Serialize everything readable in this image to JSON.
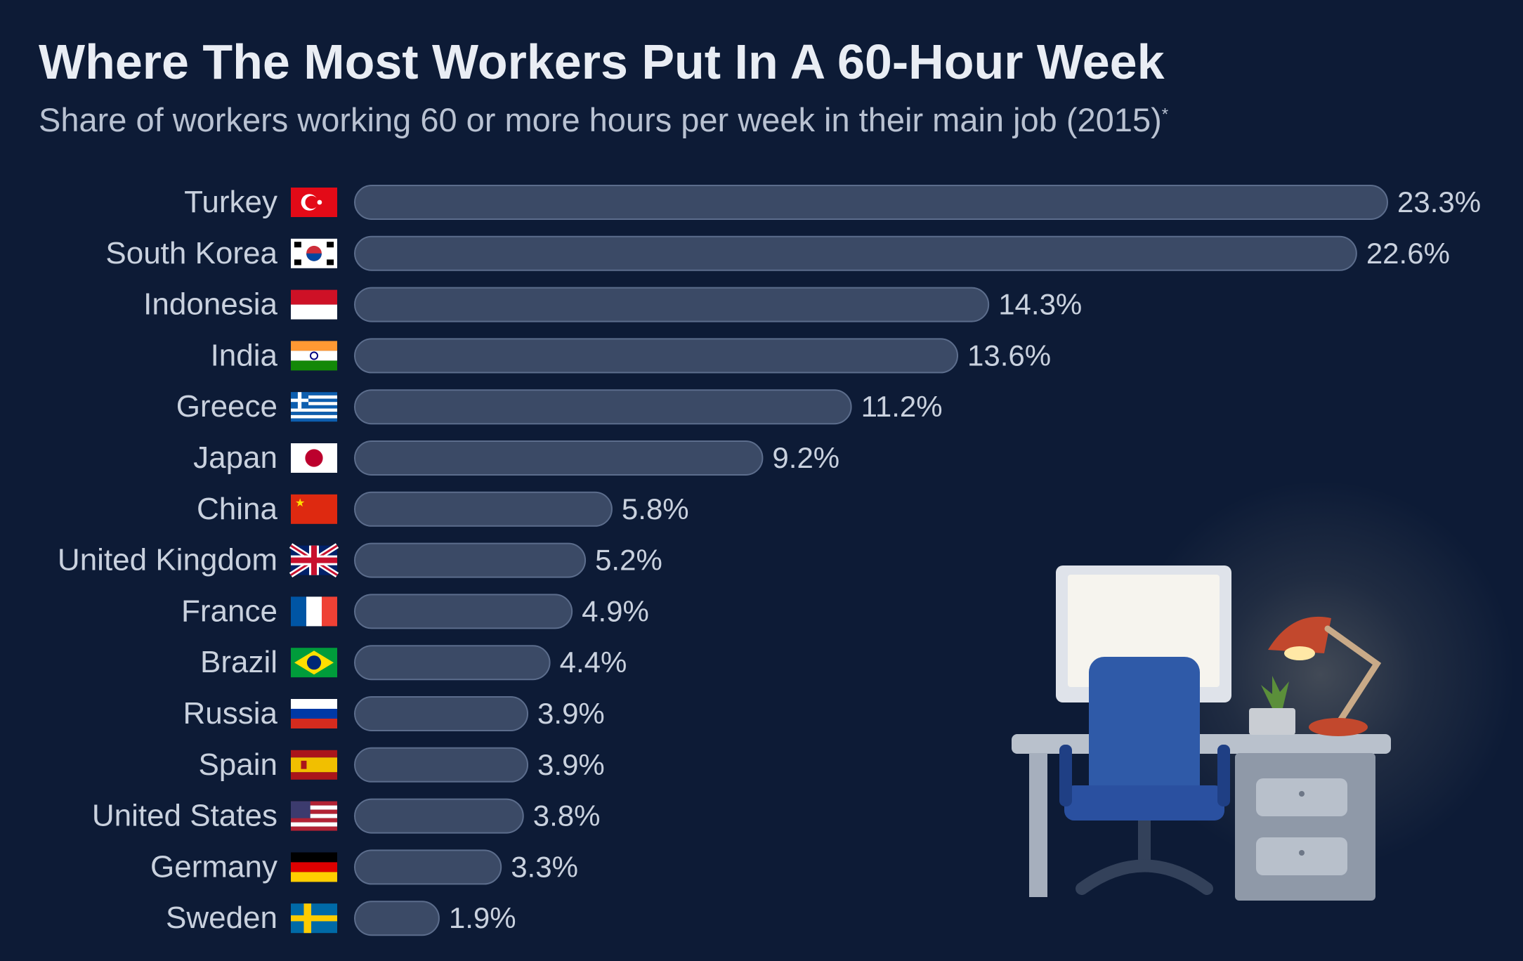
{
  "title": "Where The Most Workers Put In A 60-Hour Week",
  "subtitle": "Share of workers working 60 or more hours per week in their main job (2015)",
  "subtitle_mark": "*",
  "colors": {
    "background": "#0d1b36",
    "bar_fill": "#3b4a66",
    "bar_stroke": "#5c6d8c",
    "label": "#c9d1de",
    "value": "#c9d1de"
  },
  "chart_data": {
    "type": "bar",
    "orientation": "horizontal",
    "title": "Where The Most Workers Put In A 60-Hour Week",
    "subtitle": "Share of workers working 60 or more hours per week in their main job (2015)",
    "xlabel": "",
    "ylabel": "",
    "unit": "%",
    "xlim": [
      0,
      23.3
    ],
    "grid": false,
    "legend": "none",
    "categories": [
      "Turkey",
      "South Korea",
      "Indonesia",
      "India",
      "Greece",
      "Japan",
      "China",
      "United Kingdom",
      "France",
      "Brazil",
      "Russia",
      "Spain",
      "United States",
      "Germany",
      "Sweden"
    ],
    "values": [
      23.3,
      22.6,
      14.3,
      13.6,
      11.2,
      9.2,
      5.8,
      5.2,
      4.9,
      4.4,
      3.9,
      3.9,
      3.8,
      3.3,
      1.9
    ],
    "value_labels": [
      "23.3%",
      "22.6%",
      "14.3%",
      "13.6%",
      "11.2%",
      "9.2%",
      "5.8%",
      "5.2%",
      "4.9%",
      "4.4%",
      "3.9%",
      "3.9%",
      "3.8%",
      "3.3%",
      "1.9%"
    ],
    "flags": [
      "turkey-flag-icon",
      "south-korea-flag-icon",
      "indonesia-flag-icon",
      "india-flag-icon",
      "greece-flag-icon",
      "japan-flag-icon",
      "china-flag-icon",
      "united-kingdom-flag-icon",
      "france-flag-icon",
      "brazil-flag-icon",
      "russia-flag-icon",
      "spain-flag-icon",
      "united-states-flag-icon",
      "germany-flag-icon",
      "sweden-flag-icon"
    ]
  },
  "illustration": "desk-with-computer-chair-and-lamp-icon"
}
